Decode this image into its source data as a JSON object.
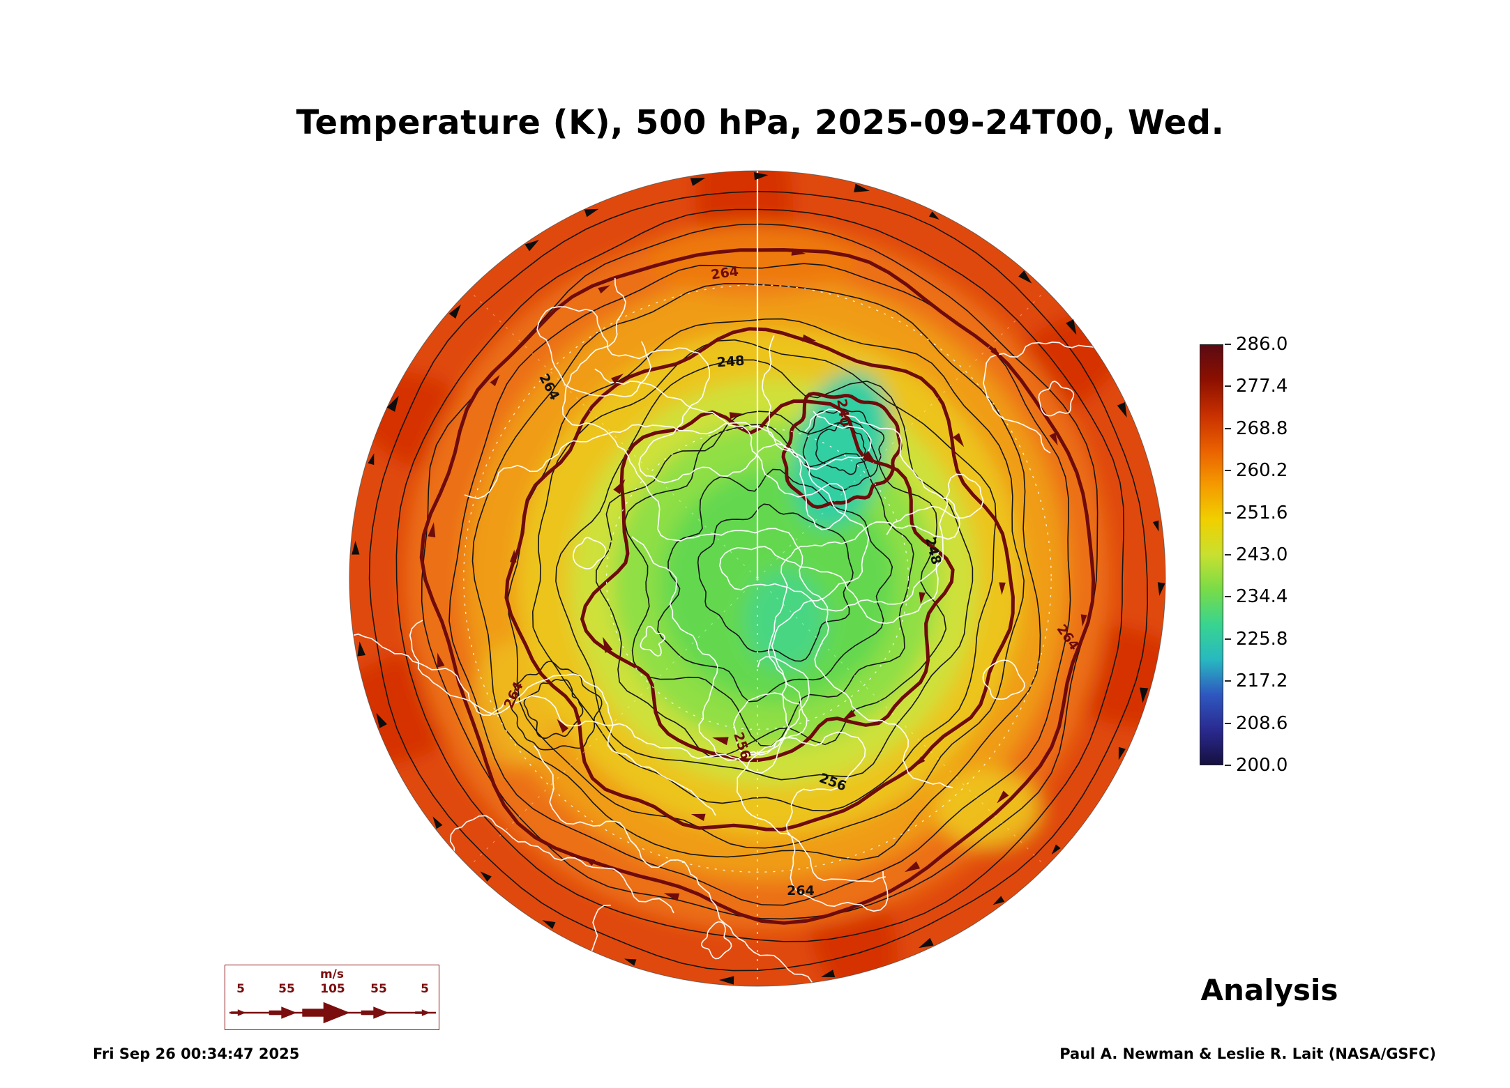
{
  "title": "Temperature (K), 500 hPa, 2025-09-24T00, Wed.",
  "footer": {
    "timestamp": "Fri Sep 26 00:34:47 2025",
    "credit": "Paul A. Newman & Leslie R. Lait (NASA/GSFC)",
    "analysis_label": "Analysis"
  },
  "colorbar": {
    "units": "K",
    "ticks": [
      "286.0",
      "277.4",
      "268.8",
      "260.2",
      "251.6",
      "243.0",
      "234.4",
      "225.8",
      "217.2",
      "208.6",
      "200.0"
    ],
    "gradient_top_to_bottom": [
      "#5a0a14",
      "#8c1000",
      "#c83000",
      "#ea6000",
      "#f49a00",
      "#f0d000",
      "#c8e030",
      "#78dc48",
      "#38d490",
      "#28b8c0",
      "#2e58c0",
      "#2a2a90",
      "#161040"
    ]
  },
  "wind_legend": {
    "unit_label": "m/s",
    "tick_labels": [
      "5",
      "55",
      "105",
      "55",
      "5"
    ],
    "color": "#7a0e0e"
  },
  "map": {
    "projection": "Northern Hemisphere polar stereographic",
    "field": "Temperature (K) at 500 hPa",
    "contour_labels": [
      "264",
      "248",
      "240",
      "248",
      "264",
      "256",
      "256",
      "264",
      "264",
      "264"
    ],
    "coastline_color": "#ffffff",
    "graticule_color": "#ffffff",
    "thick_contour_color": "#6e0b0b",
    "thin_contour_color": "#151515"
  },
  "chart_data": {
    "type": "heatmap",
    "title": "Temperature (K), 500 hPa, 2025-09-24T00, Wed.",
    "field": "500 hPa temperature (K), Northern Hemisphere polar stereographic analysis",
    "colorbar_ticks": [
      286.0,
      277.4,
      268.8,
      260.2,
      251.6,
      243.0,
      234.4,
      225.8,
      217.2,
      208.6,
      200.0
    ],
    "value_range": [
      200.0,
      286.0
    ],
    "labeled_contour_levels": [
      240,
      248,
      256,
      264
    ],
    "pattern": "cold pool ~232-244 K near the pole with coldest pocket ~228-236 K in the Siberian sector; values increase outward through 248-264 K to a warm ~266-272 K ring at the map edge"
  }
}
